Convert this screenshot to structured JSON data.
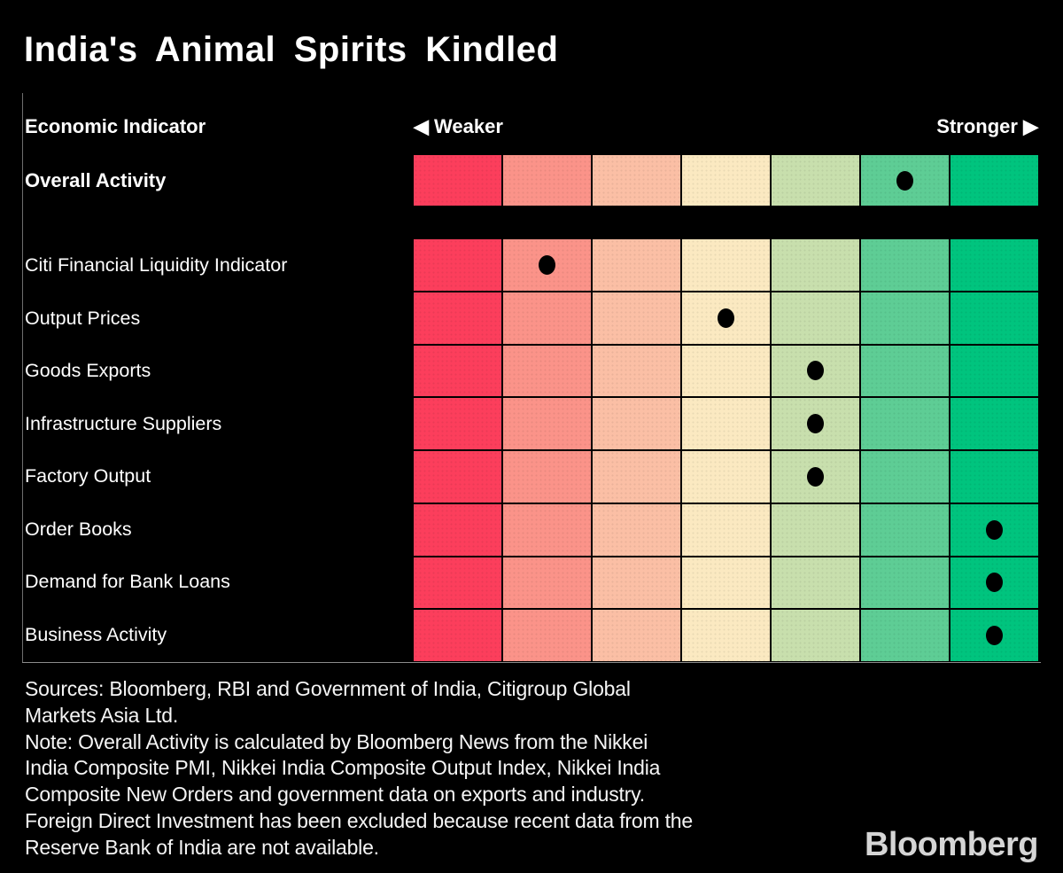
{
  "title": "India's Animal Spirits Kindled",
  "header": {
    "column_label": "Economic Indicator",
    "weaker_label": "◀ Weaker",
    "stronger_label": "Stronger ▶"
  },
  "chart_data": {
    "type": "heatmap",
    "title": "India's Animal Spirits Kindled",
    "xlabel_left": "Weaker",
    "xlabel_right": "Stronger",
    "scale_levels": 7,
    "scale_colors": [
      "#fc3e5c",
      "#fb9389",
      "#fbbfa5",
      "#fbe9c1",
      "#c8dfad",
      "#5ecd95",
      "#00c47e"
    ],
    "dot_color": "#000000",
    "overall_row": {
      "label": "Overall Activity",
      "value": 6
    },
    "rows": [
      {
        "label": "Citi Financial Liquidity Indicator",
        "value": 2
      },
      {
        "label": "Output Prices",
        "value": 4
      },
      {
        "label": "Goods Exports",
        "value": 5
      },
      {
        "label": "Infrastructure Suppliers",
        "value": 5
      },
      {
        "label": "Factory Output",
        "value": 5
      },
      {
        "label": "Order Books",
        "value": 7
      },
      {
        "label": "Demand for Bank Loans",
        "value": 7
      },
      {
        "label": "Business Activity",
        "value": 7
      }
    ]
  },
  "footer": {
    "lines": [
      "Sources: Bloomberg, RBI and Government of India, Citigroup Global",
      "Markets Asia Ltd.",
      "Note: Overall Activity is calculated by Bloomberg News from the Nikkei",
      "India Composite PMI, Nikkei India Composite Output Index, Nikkei India",
      "Composite New Orders and government data on exports and industry.",
      "Foreign Direct Investment has been excluded because recent data from the",
      "Reserve Bank of India are not available."
    ],
    "logo": "Bloomberg"
  }
}
